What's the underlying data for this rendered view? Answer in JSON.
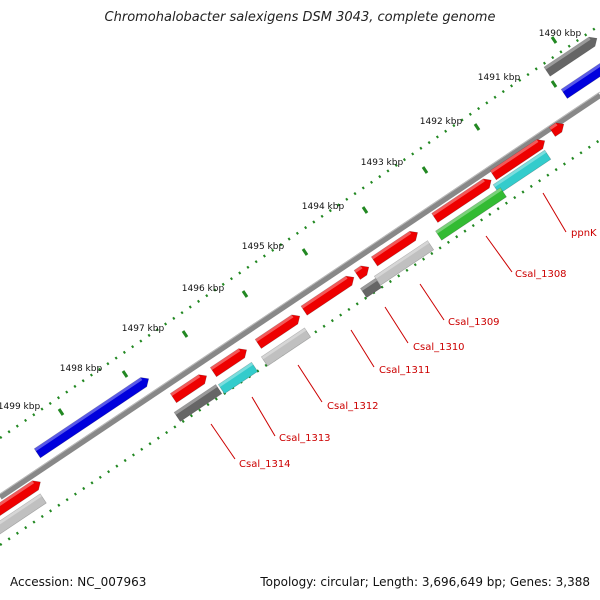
{
  "title": "Chromohalobacter salexigens DSM 3043, complete genome",
  "accession": "Accession: NC_007963",
  "stats": "Topology: circular; Length: 3,696,649 bp; Genes: 3,388",
  "ticks": [
    "1490 kbp",
    "1491 kbp",
    "1492 kbp",
    "1493 kbp",
    "1494 kbp",
    "1495 kbp",
    "1496 kbp",
    "1497 kbp",
    "1498 kbp",
    "1499 kbp"
  ],
  "gene_labels": [
    "ppnK",
    "Csal_1308",
    "Csal_1309",
    "Csal_1310",
    "Csal_1311",
    "Csal_1312",
    "Csal_1313",
    "Csal_1314"
  ],
  "colors": {
    "cds": "#ee0000",
    "blue": "#0000dd",
    "dark_gray": "#666666",
    "light_gray": "#c0c0c0",
    "cyan": "#33cccc",
    "green": "#33bb33",
    "backbone": "#888888",
    "tick": "#228822",
    "label": "#cc0000"
  }
}
